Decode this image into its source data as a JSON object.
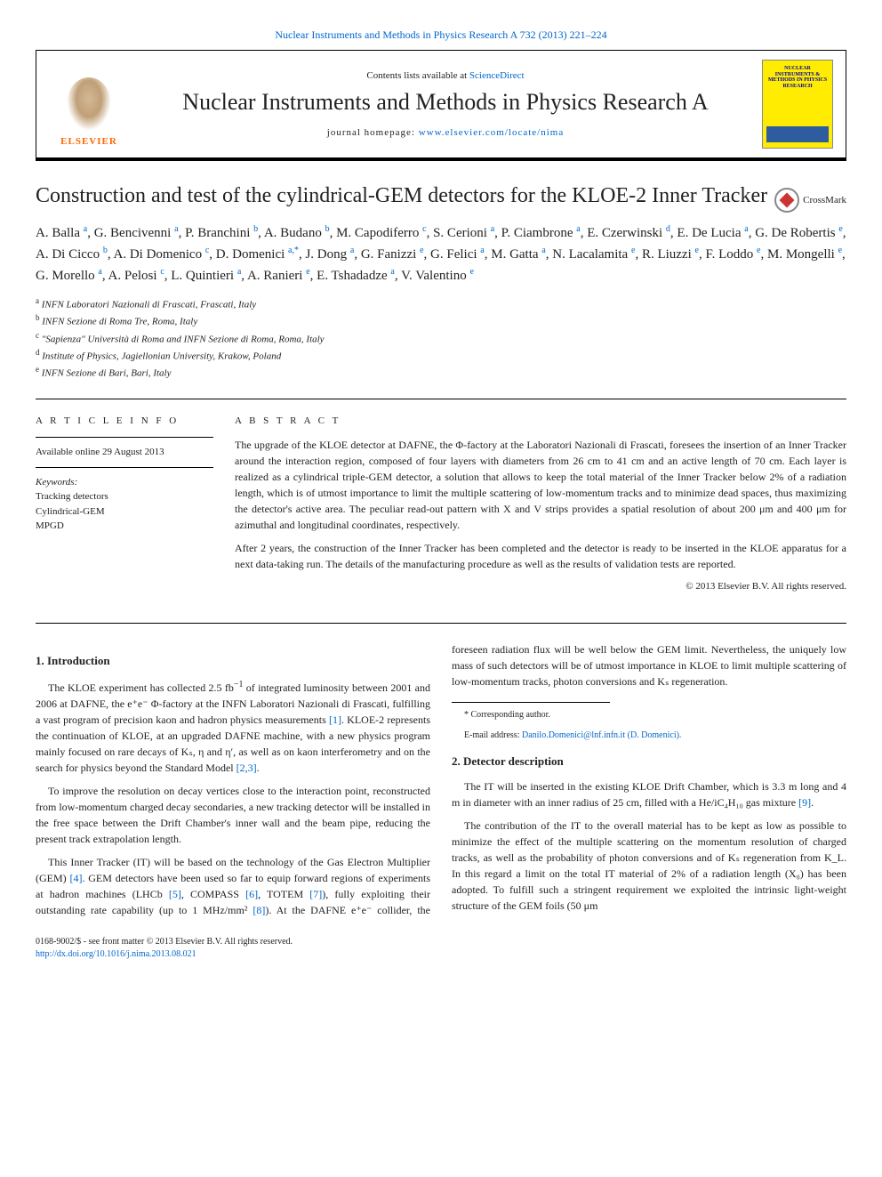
{
  "top_citation": "Nuclear Instruments and Methods in Physics Research A 732 (2013) 221–224",
  "header": {
    "publisher_name": "ELSEVIER",
    "contents_prefix": "Contents lists available at ",
    "contents_link": "ScienceDirect",
    "journal_name": "Nuclear Instruments and Methods in Physics Research A",
    "homepage_prefix": "journal homepage: ",
    "homepage_link": "www.elsevier.com/locate/nima",
    "cover_title": "NUCLEAR INSTRUMENTS & METHODS IN PHYSICS RESEARCH"
  },
  "crossmark": "CrossMark",
  "title": "Construction and test of the cylindrical-GEM detectors for the KLOE-2 Inner Tracker",
  "authors_html": "A. Balla <sup>a</sup>, G. Bencivenni <sup>a</sup>, P. Branchini <sup>b</sup>, A. Budano <sup>b</sup>, M. Capodiferro <sup>c</sup>, S. Cerioni <sup>a</sup>, P. Ciambrone <sup>a</sup>, E. Czerwinski <sup>d</sup>, E. De Lucia <sup>a</sup>, G. De Robertis <sup>e</sup>, A. Di Cicco <sup>b</sup>, A. Di Domenico <sup>c</sup>, D. Domenici <sup>a,*</sup>, J. Dong <sup>a</sup>, G. Fanizzi <sup>e</sup>, G. Felici <sup>a</sup>, M. Gatta <sup>a</sup>, N. Lacalamita <sup>e</sup>, R. Liuzzi <sup>e</sup>, F. Loddo <sup>e</sup>, M. Mongelli <sup>e</sup>, G. Morello <sup>a</sup>, A. Pelosi <sup>c</sup>, L. Quintieri <sup>a</sup>, A. Ranieri <sup>e</sup>, E. Tshadadze <sup>a</sup>, V. Valentino <sup>e</sup>",
  "affiliations": [
    {
      "sup": "a",
      "text": "INFN Laboratori Nazionali di Frascati, Frascati, Italy"
    },
    {
      "sup": "b",
      "text": "INFN Sezione di Roma Tre, Roma, Italy"
    },
    {
      "sup": "c",
      "text": "\"Sapienza\" Università di Roma and INFN Sezione di Roma, Roma, Italy"
    },
    {
      "sup": "d",
      "text": "Institute of Physics, Jagiellonian University, Krakow, Poland"
    },
    {
      "sup": "e",
      "text": "INFN Sezione di Bari, Bari, Italy"
    }
  ],
  "article_info": {
    "heading": "A R T I C L E   I N F O",
    "history": "Available online 29 August 2013",
    "keywords_label": "Keywords:",
    "keywords": [
      "Tracking detectors",
      "Cylindrical-GEM",
      "MPGD"
    ]
  },
  "abstract": {
    "heading": "A B S T R A C T",
    "p1": "The upgrade of the KLOE detector at DAFNE, the Φ-factory at the Laboratori Nazionali di Frascati, foresees the insertion of an Inner Tracker around the interaction region, composed of four layers with diameters from 26 cm to 41 cm and an active length of 70 cm. Each layer is realized as a cylindrical triple-GEM detector, a solution that allows to keep the total material of the Inner Tracker below 2% of a radiation length, which is of utmost importance to limit the multiple scattering of low-momentum tracks and to minimize dead spaces, thus maximizing the detector's active area. The peculiar read-out pattern with X and V strips provides a spatial resolution of about 200 μm and 400 μm for azimuthal and longitudinal coordinates, respectively.",
    "p2": "After 2 years, the construction of the Inner Tracker has been completed and the detector is ready to be inserted in the KLOE apparatus for a next data-taking run. The details of the manufacturing procedure as well as the results of validation tests are reported.",
    "copyright": "© 2013 Elsevier B.V. All rights reserved."
  },
  "sections": {
    "s1_title": "1. Introduction",
    "s1_p1_a": "The KLOE experiment has collected 2.5 fb",
    "s1_p1_b": " of integrated luminosity between 2001 and 2006 at DAFNE, the e⁺e⁻ Φ-factory at the INFN Laboratori Nazionali di Frascati, fulfilling a vast program of precision kaon and hadron physics measurements ",
    "s1_p1_c": ". KLOE-2 represents the continuation of KLOE, at an upgraded DAFNE machine, with a new physics program mainly focused on rare decays of Kₛ, η and η′, as well as on kaon interferometry and on the search for physics beyond the Standard Model ",
    "s1_p2": "To improve the resolution on decay vertices close to the interaction point, reconstructed from low-momentum charged decay secondaries, a new tracking detector will be installed in the free space between the Drift Chamber's inner wall and the beam pipe, reducing the present track extrapolation length.",
    "s1_p3_a": "This Inner Tracker (IT) will be based on the technology of the Gas Electron Multiplier (GEM) ",
    "s1_p3_b": ". GEM detectors have been used so far to ",
    "s1_p3_c": "equip forward regions of experiments at hadron machines (LHCb ",
    "s1_p3_d": ", COMPASS ",
    "s1_p3_e": ", TOTEM ",
    "s1_p3_f": "), fully exploiting their outstanding rate capability (up to 1 MHz/mm² ",
    "s1_p3_g": "). At the DAFNE e⁺e⁻ collider, the foreseen radiation flux will be well below the GEM limit. Nevertheless, the uniquely low mass of such detectors will be of utmost importance in KLOE to limit multiple scattering of low-momentum tracks, photon conversions and Kₛ regeneration.",
    "s2_title": "2. Detector description",
    "s2_p1_a": "The IT will be inserted in the existing KLOE Drift Chamber, which is 3.3 m long and 4 m in diameter with an inner radius of 25 cm, filled with a He/iC₄H₁₀ gas mixture ",
    "s2_p2": "The contribution of the IT to the overall material has to be kept as low as possible to minimize the effect of the multiple scattering on the momentum resolution of charged tracks, as well as the probability of photon conversions and of Kₛ regeneration from K_L. In this regard a limit on the total IT material of 2% of a radiation length (X₀) has been adopted. To fulfill such a stringent requirement we exploited the intrinsic light-weight structure of the GEM foils (50 μm"
  },
  "refs": {
    "r1": "[1]",
    "r23": "[2,3]",
    "r4": "[4]",
    "r5": "[5]",
    "r6": "[6]",
    "r7": "[7]",
    "r8": "[8]",
    "r9": "[9]"
  },
  "footnote": {
    "corr_label": "* Corresponding author.",
    "email_label": "E-mail address: ",
    "email": "Danilo.Domenici@lnf.infn.it (D. Domenici)."
  },
  "footer": {
    "line1": "0168-9002/$ - see front matter © 2013 Elsevier B.V. All rights reserved.",
    "doi": "http://dx.doi.org/10.1016/j.nima.2013.08.021"
  },
  "colors": {
    "link": "#0066cc",
    "elsevier_orange": "#ff6600",
    "cover_yellow": "#ffec00",
    "cover_text": "#0000aa"
  }
}
